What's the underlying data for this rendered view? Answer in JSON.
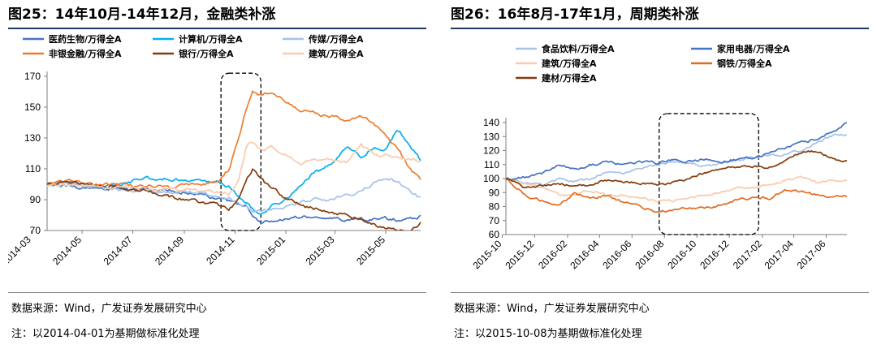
{
  "chart_data": [
    {
      "type": "line",
      "title": "图25：14年10月-14年12月，金融类补涨",
      "source": "数据来源：Wind，广发证券发展研究中心",
      "note": "注：以2014-04-01为基期做标准化处理",
      "ylim": [
        70,
        170
      ],
      "yticks": [
        70,
        90,
        110,
        130,
        150,
        170
      ],
      "xticks": [
        "2014-03",
        "2014-05",
        "2014-07",
        "2014-09",
        "2014-11",
        "2015-01",
        "2015-03",
        "2015-05"
      ],
      "xrange": [
        "2014-03-20",
        "2015-06-12"
      ],
      "legend_position": "top",
      "highlight": {
        "x0": "2014-10-15",
        "x1": "2014-12-02",
        "y0": 70,
        "y1": 172
      },
      "series": [
        {
          "name": "医药生物/万得全A",
          "color": "#4472c4",
          "x": [
            "2014-03-20",
            "2014-04-15",
            "2014-05-15",
            "2014-06-15",
            "2014-07-15",
            "2014-08-15",
            "2014-09-15",
            "2014-10-10",
            "2014-10-25",
            "2014-11-05",
            "2014-11-15",
            "2014-11-22",
            "2014-12-01",
            "2014-12-15",
            "2015-01-05",
            "2015-01-20",
            "2015-02-05",
            "2015-02-25",
            "2015-03-15",
            "2015-04-01",
            "2015-04-15",
            "2015-05-01",
            "2015-05-15",
            "2015-06-01",
            "2015-06-12"
          ],
          "values": [
            99,
            99,
            97,
            97,
            97,
            96,
            94,
            91,
            89,
            87,
            86,
            80,
            75,
            76,
            78,
            79,
            79,
            78,
            77,
            77,
            77,
            78,
            77,
            78,
            79
          ]
        },
        {
          "name": "计算机/万得全A",
          "color": "#00b0f0",
          "x": [
            "2014-03-20",
            "2014-04-15",
            "2014-05-15",
            "2014-06-15",
            "2014-07-15",
            "2014-08-15",
            "2014-09-15",
            "2014-10-10",
            "2014-10-25",
            "2014-11-05",
            "2014-11-15",
            "2014-11-22",
            "2014-12-01",
            "2014-12-15",
            "2015-01-05",
            "2015-01-20",
            "2015-02-05",
            "2015-02-25",
            "2015-03-15",
            "2015-04-01",
            "2015-04-15",
            "2015-05-01",
            "2015-05-15",
            "2015-06-01",
            "2015-06-12"
          ],
          "values": [
            100,
            101,
            98,
            100,
            104,
            103,
            103,
            102,
            98,
            92,
            88,
            84,
            80,
            86,
            92,
            100,
            108,
            112,
            124,
            118,
            124,
            122,
            136,
            124,
            116
          ]
        },
        {
          "name": "传媒/万得全A",
          "color": "#a6c2e6",
          "x": [
            "2014-03-20",
            "2014-04-15",
            "2014-05-15",
            "2014-06-15",
            "2014-07-15",
            "2014-08-15",
            "2014-09-15",
            "2014-10-10",
            "2014-10-25",
            "2014-11-05",
            "2014-11-15",
            "2014-11-22",
            "2014-12-01",
            "2014-12-15",
            "2015-01-05",
            "2015-01-20",
            "2015-02-05",
            "2015-02-25",
            "2015-03-15",
            "2015-04-01",
            "2015-04-15",
            "2015-05-01",
            "2015-05-15",
            "2015-06-01",
            "2015-06-12"
          ],
          "values": [
            100,
            101,
            98,
            96,
            96,
            95,
            95,
            93,
            91,
            88,
            86,
            83,
            82,
            84,
            86,
            88,
            90,
            91,
            93,
            96,
            100,
            104,
            102,
            95,
            91
          ]
        },
        {
          "name": "非银金融/万得全A",
          "color": "#ed7d31",
          "x": [
            "2014-03-20",
            "2014-04-15",
            "2014-05-15",
            "2014-06-15",
            "2014-07-15",
            "2014-08-15",
            "2014-09-15",
            "2014-10-10",
            "2014-10-25",
            "2014-11-05",
            "2014-11-15",
            "2014-11-22",
            "2014-12-01",
            "2014-12-15",
            "2015-01-05",
            "2015-01-20",
            "2015-02-05",
            "2015-02-25",
            "2015-03-15",
            "2015-04-01",
            "2015-04-15",
            "2015-05-01",
            "2015-05-15",
            "2015-06-01",
            "2015-06-12"
          ],
          "values": [
            100,
            102,
            100,
            100,
            99,
            98,
            100,
            101,
            110,
            130,
            150,
            160,
            158,
            160,
            152,
            148,
            146,
            144,
            142,
            144,
            140,
            132,
            124,
            108,
            103
          ]
        },
        {
          "name": "银行/万得全A",
          "color": "#843c0c",
          "x": [
            "2014-03-20",
            "2014-04-15",
            "2014-05-15",
            "2014-06-15",
            "2014-07-15",
            "2014-08-15",
            "2014-09-15",
            "2014-10-10",
            "2014-10-25",
            "2014-11-05",
            "2014-11-15",
            "2014-11-22",
            "2014-12-01",
            "2014-12-15",
            "2015-01-05",
            "2015-01-20",
            "2015-02-05",
            "2015-02-25",
            "2015-03-15",
            "2015-04-01",
            "2015-04-15",
            "2015-05-01",
            "2015-05-15",
            "2015-06-01",
            "2015-06-12"
          ],
          "values": [
            100,
            101,
            100,
            98,
            96,
            92,
            89,
            87,
            84,
            90,
            104,
            110,
            104,
            97,
            90,
            86,
            84,
            82,
            80,
            78,
            74,
            71,
            70,
            70,
            75
          ]
        },
        {
          "name": "建筑/万得全A",
          "color": "#f8cbad",
          "x": [
            "2014-03-20",
            "2014-04-15",
            "2014-05-15",
            "2014-06-15",
            "2014-07-15",
            "2014-08-15",
            "2014-09-15",
            "2014-10-10",
            "2014-10-25",
            "2014-11-05",
            "2014-11-15",
            "2014-11-22",
            "2014-12-01",
            "2014-12-15",
            "2015-01-05",
            "2015-01-20",
            "2015-02-05",
            "2015-02-25",
            "2015-03-15",
            "2015-04-01",
            "2015-04-15",
            "2015-05-01",
            "2015-05-15",
            "2015-06-01",
            "2015-06-12"
          ],
          "values": [
            99,
            100,
            99,
            98,
            97,
            97,
            96,
            95,
            94,
            102,
            126,
            128,
            122,
            124,
            118,
            114,
            116,
            116,
            114,
            126,
            120,
            118,
            117,
            116,
            115
          ]
        }
      ]
    },
    {
      "type": "line",
      "title": "图26：16年8月-17年1月，周期类补涨",
      "source": "数据来源：Wind，广发证券发展研究中心",
      "note": "注：以2015-10-08为基期做标准化处理",
      "ylim": [
        60,
        140
      ],
      "yticks": [
        60,
        70,
        80,
        90,
        100,
        110,
        120,
        130,
        140
      ],
      "xticks": [
        "2015-10",
        "2015-12",
        "2016-02",
        "2016-04",
        "2016-06",
        "2016-08",
        "2016-10",
        "2016-12",
        "2017-02",
        "2017-04",
        "2017-06"
      ],
      "xrange": [
        "2015-10-08",
        "2017-07-10"
      ],
      "legend_position": "top",
      "highlight": {
        "x0": "2016-07-22",
        "x1": "2017-01-25",
        "y0": 60,
        "y1": 150
      },
      "series": [
        {
          "name": "食品饮料/万得全A",
          "color": "#a6c2e6",
          "x": [
            "2015-10-08",
            "2015-11-15",
            "2015-12-15",
            "2016-01-15",
            "2016-02-15",
            "2016-03-15",
            "2016-04-15",
            "2016-05-15",
            "2016-06-15",
            "2016-07-15",
            "2016-08-15",
            "2016-09-15",
            "2016-10-15",
            "2016-11-15",
            "2016-12-15",
            "2017-01-15",
            "2017-02-15",
            "2017-03-15",
            "2017-04-15",
            "2017-05-15",
            "2017-06-15",
            "2017-07-10"
          ],
          "values": [
            100,
            97,
            95,
            100,
            98,
            100,
            104,
            104,
            107,
            110,
            112,
            111,
            109,
            111,
            113,
            115,
            117,
            117,
            120,
            126,
            131,
            132
          ]
        },
        {
          "name": "家用电器/万得全A",
          "color": "#4472c4",
          "x": [
            "2015-10-08",
            "2015-11-15",
            "2015-12-15",
            "2016-01-15",
            "2016-02-15",
            "2016-03-15",
            "2016-04-15",
            "2016-05-15",
            "2016-06-15",
            "2016-07-15",
            "2016-08-15",
            "2016-09-15",
            "2016-10-15",
            "2016-11-15",
            "2016-12-15",
            "2017-01-15",
            "2017-02-15",
            "2017-03-15",
            "2017-04-15",
            "2017-05-15",
            "2017-06-15",
            "2017-07-10"
          ],
          "values": [
            100,
            101,
            104,
            110,
            107,
            110,
            112,
            110,
            112,
            111,
            113,
            112,
            114,
            112,
            114,
            115,
            118,
            122,
            126,
            128,
            134,
            140
          ]
        },
        {
          "name": "建筑/万得全A",
          "color": "#f8cbad",
          "x": [
            "2015-10-08",
            "2015-11-15",
            "2015-12-15",
            "2016-01-15",
            "2016-02-15",
            "2016-03-15",
            "2016-04-15",
            "2016-05-15",
            "2016-06-15",
            "2016-07-15",
            "2016-08-15",
            "2016-09-15",
            "2016-10-15",
            "2016-11-15",
            "2016-12-15",
            "2017-01-15",
            "2017-02-15",
            "2017-03-15",
            "2017-04-15",
            "2017-05-15",
            "2017-06-15",
            "2017-07-10"
          ],
          "values": [
            100,
            96,
            94,
            89,
            88,
            92,
            88,
            88,
            86,
            84,
            84,
            86,
            88,
            90,
            94,
            93,
            96,
            98,
            101,
            97,
            99,
            99
          ]
        },
        {
          "name": "钢铁/万得全A",
          "color": "#e06c1f",
          "x": [
            "2015-10-08",
            "2015-11-15",
            "2015-12-15",
            "2016-01-15",
            "2016-02-15",
            "2016-03-15",
            "2016-04-15",
            "2016-05-15",
            "2016-06-15",
            "2016-07-15",
            "2016-08-15",
            "2016-09-15",
            "2016-10-15",
            "2016-11-15",
            "2016-12-15",
            "2017-01-15",
            "2017-02-15",
            "2017-03-15",
            "2017-04-15",
            "2017-05-15",
            "2017-06-15",
            "2017-07-10"
          ],
          "values": [
            100,
            88,
            84,
            80,
            90,
            86,
            88,
            83,
            80,
            77,
            77,
            79,
            79,
            81,
            85,
            86,
            86,
            92,
            91,
            88,
            87,
            88
          ]
        },
        {
          "name": "建材/万得全A",
          "color": "#843c0c",
          "x": [
            "2015-10-08",
            "2015-11-15",
            "2015-12-15",
            "2016-01-15",
            "2016-02-15",
            "2016-03-15",
            "2016-04-15",
            "2016-05-15",
            "2016-06-15",
            "2016-07-15",
            "2016-08-15",
            "2016-09-15",
            "2016-10-15",
            "2016-11-15",
            "2016-12-15",
            "2017-01-15",
            "2017-02-15",
            "2017-03-15",
            "2017-04-15",
            "2017-05-15",
            "2017-06-15",
            "2017-07-10"
          ],
          "values": [
            100,
            93,
            95,
            97,
            94,
            96,
            99,
            98,
            97,
            96,
            97,
            100,
            104,
            107,
            108,
            109,
            108,
            112,
            118,
            120,
            114,
            112
          ]
        }
      ]
    }
  ]
}
